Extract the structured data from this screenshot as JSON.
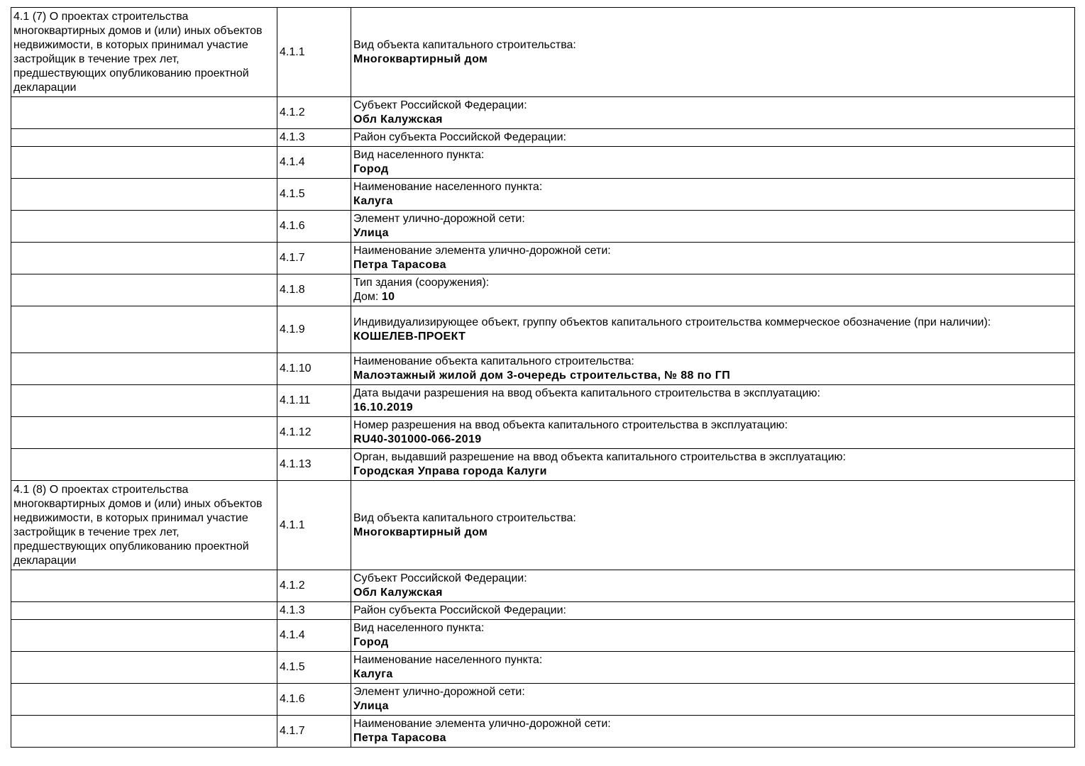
{
  "sections": [
    {
      "title": "4.1 (7) О проектах строительства многоквартирных домов и (или) иных объектов недвижимости, в которых принимал участие застройщик в течение трех лет, предшествующих опубликованию проектной декларации",
      "rows": [
        {
          "code": "4.1.1",
          "label": "Вид объекта капитального строительства:",
          "value": "Многоквартирный дом"
        },
        {
          "code": "4.1.2",
          "label": "Субъект Российской Федерации:",
          "value": "Обл Калужская"
        },
        {
          "code": "4.1.3",
          "label": "Район субъекта Российской Федерации:",
          "value": ""
        },
        {
          "code": "4.1.4",
          "label": "Вид населенного пункта:",
          "value": "Город"
        },
        {
          "code": "4.1.5",
          "label": "Наименование населенного пункта:",
          "value": "Калуга"
        },
        {
          "code": "4.1.6",
          "label": "Элемент улично-дорожной сети:",
          "value": "Улица"
        },
        {
          "code": "4.1.7",
          "label": "Наименование элемента улично-дорожной сети:",
          "value": "Петра Тарасова"
        },
        {
          "code": "4.1.8",
          "label": "Тип здания (сооружения):",
          "value_prefix": "Дом: ",
          "value": "10"
        },
        {
          "code": "4.1.9",
          "label": "Индивидуализирующее объект, группу объектов капитального строительства коммерческое обозначение (при наличии):",
          "value": "КОШЕЛЕВ-ПРОЕКТ"
        },
        {
          "code": "4.1.10",
          "label": "Наименование объекта капитального строительства:",
          "value": "Малоэтажный жилой дом 3-очередь строительства, № 88 по ГП"
        },
        {
          "code": "4.1.11",
          "label": "Дата выдачи разрешения на ввод объекта капитального строительства в эксплуатацию:",
          "value": "16.10.2019"
        },
        {
          "code": "4.1.12",
          "label": "Номер разрешения на ввод объекта капитального строительства в эксплуатацию:",
          "value": "RU40-301000-066-2019"
        },
        {
          "code": "4.1.13",
          "label": "Орган, выдавший разрешение на ввод объекта капитального строительства в эксплуатацию:",
          "value": "Городская Управа города Калуги"
        }
      ]
    },
    {
      "title": "4.1 (8) О проектах строительства многоквартирных домов и (или) иных объектов недвижимости, в которых принимал участие застройщик в течение трех лет, предшествующих опубликованию проектной декларации",
      "rows": [
        {
          "code": "4.1.1",
          "label": "Вид объекта капитального строительства:",
          "value": "Многоквартирный дом"
        },
        {
          "code": "4.1.2",
          "label": "Субъект Российской Федерации:",
          "value": "Обл Калужская"
        },
        {
          "code": "4.1.3",
          "label": "Район субъекта Российской Федерации:",
          "value": ""
        },
        {
          "code": "4.1.4",
          "label": "Вид населенного пункта:",
          "value": "Город"
        },
        {
          "code": "4.1.5",
          "label": "Наименование населенного пункта:",
          "value": "Калуга"
        },
        {
          "code": "4.1.6",
          "label": "Элемент улично-дорожной сети:",
          "value": "Улица"
        },
        {
          "code": "4.1.7",
          "label": "Наименование элемента улично-дорожной сети:",
          "value": "Петра Тарасова"
        }
      ]
    }
  ]
}
